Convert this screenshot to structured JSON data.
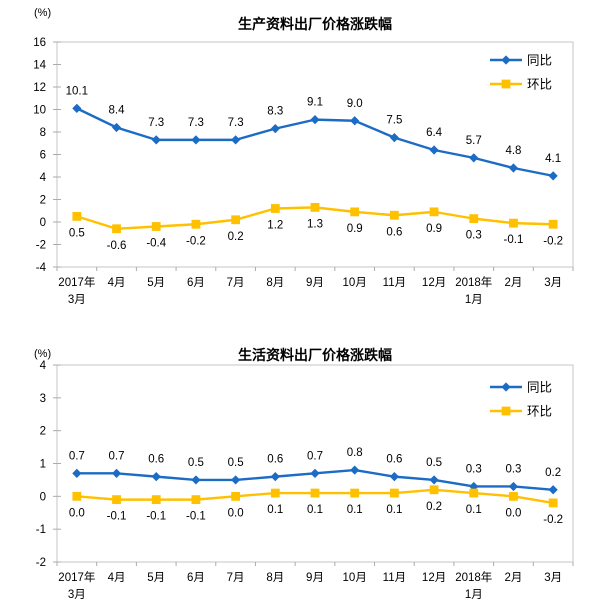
{
  "page": {
    "background": "#ffffff"
  },
  "chart_data": [
    {
      "type": "line",
      "title": "生产资料出厂价格涨跌幅",
      "unit_label": "(%)",
      "xlabel": "",
      "ylabel": "(%)",
      "ylim": [
        -4,
        16
      ],
      "ytick_step": 2,
      "grid": false,
      "legend_position": "top-right",
      "categories": [
        "2017年\n3月",
        "4月",
        "5月",
        "6月",
        "7月",
        "8月",
        "9月",
        "10月",
        "11月",
        "12月",
        "2018年\n1月",
        "2月",
        "3月"
      ],
      "series": [
        {
          "id": "yoy",
          "name": "同比",
          "color": "#1C6BC5",
          "marker": "diamond",
          "label_position": "above",
          "values": [
            10.1,
            8.4,
            7.3,
            7.3,
            7.3,
            8.3,
            9.1,
            9.0,
            7.5,
            6.4,
            5.7,
            4.8,
            4.1
          ]
        },
        {
          "id": "mom",
          "name": "环比",
          "color": "#FFC000",
          "marker": "square",
          "label_position": "below",
          "values": [
            0.5,
            -0.6,
            -0.4,
            -0.2,
            0.2,
            1.2,
            1.3,
            0.9,
            0.6,
            0.9,
            0.3,
            -0.1,
            -0.2
          ]
        }
      ]
    },
    {
      "type": "line",
      "title": "生活资料出厂价格涨跌幅",
      "unit_label": "(%)",
      "xlabel": "",
      "ylabel": "(%)",
      "ylim": [
        -2,
        4
      ],
      "ytick_step": 1,
      "grid": false,
      "legend_position": "top-right",
      "categories": [
        "2017年\n3月",
        "4月",
        "5月",
        "6月",
        "7月",
        "8月",
        "9月",
        "10月",
        "11月",
        "12月",
        "2018年\n1月",
        "2月",
        "3月"
      ],
      "series": [
        {
          "id": "yoy",
          "name": "同比",
          "color": "#1C6BC5",
          "marker": "diamond",
          "label_position": "above",
          "values": [
            0.7,
            0.7,
            0.6,
            0.5,
            0.5,
            0.6,
            0.7,
            0.8,
            0.6,
            0.5,
            0.3,
            0.3,
            0.2
          ]
        },
        {
          "id": "mom",
          "name": "环比",
          "color": "#FFC000",
          "marker": "square",
          "label_position": "below",
          "values": [
            0.0,
            -0.1,
            -0.1,
            -0.1,
            0.0,
            0.1,
            0.1,
            0.1,
            0.1,
            0.2,
            0.1,
            0.0,
            -0.2
          ]
        }
      ]
    }
  ],
  "style": {
    "plot_border_color": "#C6C6C6",
    "tick_color": "#ABABAB",
    "text_color": "#000000"
  }
}
